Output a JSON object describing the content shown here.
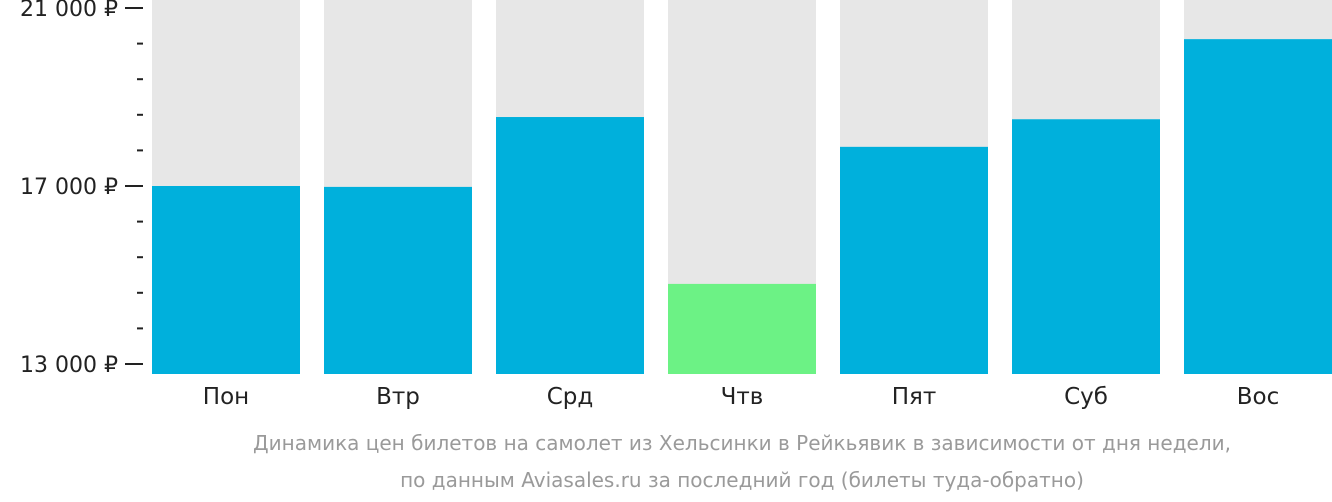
{
  "chart_data": {
    "type": "bar",
    "categories": [
      "Пон",
      "Втр",
      "Срд",
      "Чтв",
      "Пят",
      "Суб",
      "Вос"
    ],
    "values": [
      17000,
      16980,
      18550,
      14800,
      17880,
      18500,
      20300
    ],
    "ylim": [
      13000,
      21000
    ],
    "y_major_ticks": [
      {
        "value": 21000,
        "label": "21 000 ₽"
      },
      {
        "value": 17000,
        "label": "17 000 ₽"
      },
      {
        "value": 13000,
        "label": "13 000 ₽"
      }
    ],
    "y_minor_ticks": [
      13800,
      14600,
      15400,
      16200,
      17800,
      18600,
      19400,
      20200
    ],
    "highlight_category": "Чтв",
    "grid": false,
    "title": "Динамика цен билетов на самолет из Хельсинки в Рейкьявик в зависимости от дня недели,",
    "subtitle": "по данным Aviasales.ru за последний год (билеты туда-обратно)"
  },
  "colors": {
    "bar": "#00b0dc",
    "bar_highlight": "#6cf285",
    "bar_background": "#e7e7e7",
    "axis_tick": "#222222",
    "caption": "#9a9a9a"
  }
}
